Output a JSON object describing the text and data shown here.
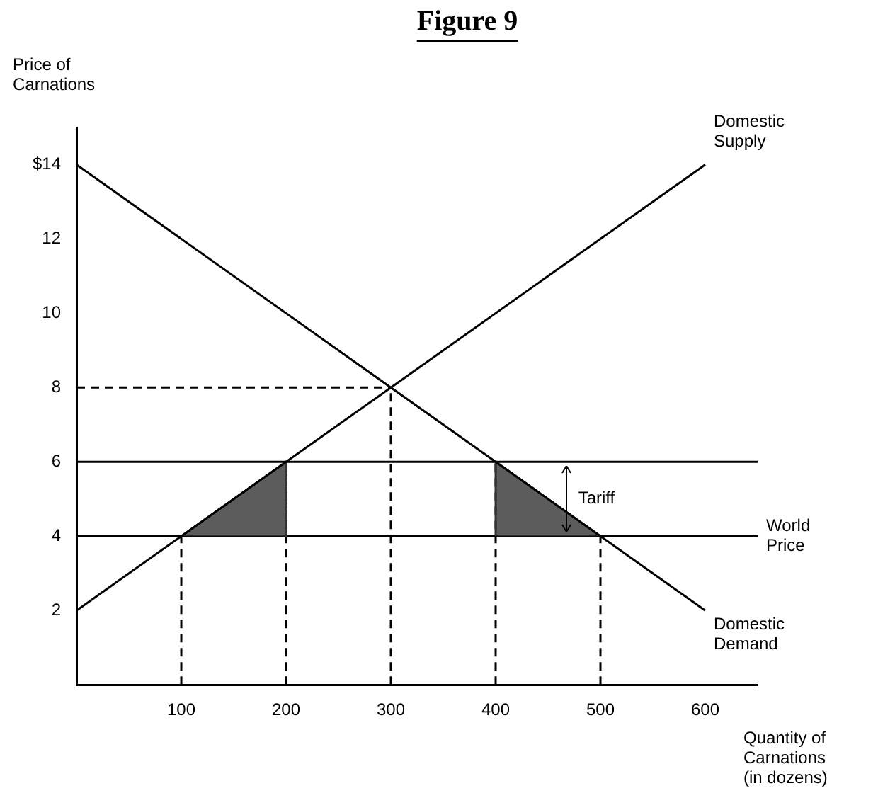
{
  "chart_data": {
    "type": "line",
    "title": "Figure 9",
    "ylabel": "Price of Carnations",
    "xlabel": "Quantity of Carnations (in dozens)",
    "xlim": [
      0,
      650
    ],
    "ylim": [
      0,
      15
    ],
    "xticks": [
      100,
      200,
      300,
      400,
      500,
      600
    ],
    "yticks": [
      2,
      4,
      6,
      8,
      10,
      12,
      {
        "value": 14,
        "label": "$14"
      }
    ],
    "grid": false,
    "legend": false,
    "marker": "none",
    "series": [
      {
        "name": "Domestic Supply",
        "color": "#000000",
        "x": [
          0,
          600
        ],
        "values": [
          2,
          14
        ]
      },
      {
        "name": "Domestic Demand",
        "color": "#000000",
        "x": [
          0,
          600
        ],
        "values": [
          14,
          2
        ]
      },
      {
        "type": "area",
        "color": "#333333",
        "x": [
          100,
          200,
          200
        ],
        "values": [
          4,
          6,
          4
        ]
      },
      {
        "type": "area",
        "color": "#333333",
        "x": [
          400,
          400,
          500
        ],
        "values": [
          4,
          6,
          4
        ]
      },
      {
        "color": "#000000",
        "line_style": "dashed",
        "x": [
          0,
          300
        ],
        "values": [
          8,
          8
        ]
      },
      {
        "color": "#000000",
        "line_style": "dashed",
        "x": [
          100,
          100
        ],
        "values": [
          0,
          4
        ]
      },
      {
        "color": "#000000",
        "line_style": "dashed",
        "x": [
          200,
          200
        ],
        "values": [
          0,
          6
        ]
      },
      {
        "color": "#000000",
        "line_style": "dashed",
        "x": [
          300,
          300
        ],
        "values": [
          0,
          8
        ]
      },
      {
        "color": "#000000",
        "line_style": "dashed",
        "x": [
          400,
          400
        ],
        "values": [
          0,
          6
        ]
      },
      {
        "color": "#000000",
        "line_style": "dashed",
        "x": [
          500,
          500
        ],
        "values": [
          0,
          4
        ]
      }
    ],
    "ref_lines": [
      {
        "axis": "y",
        "value": 4,
        "label": "World Price",
        "color": "#000000"
      },
      {
        "axis": "y",
        "value": 6,
        "color": "#000000"
      }
    ],
    "annotations": [
      "Tariff"
    ]
  }
}
